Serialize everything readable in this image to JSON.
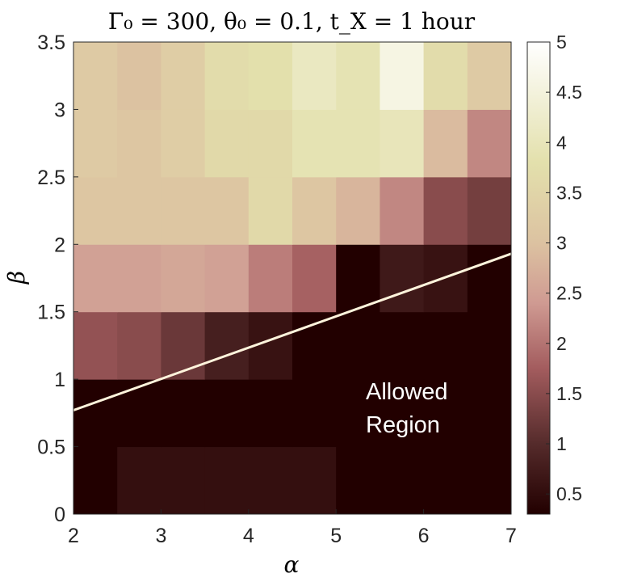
{
  "chart_data": {
    "type": "heatmap",
    "title": "Γ₀ = 300, θ₀ = 0.1, t_X = 1 hour",
    "xlabel": "α",
    "ylabel": "β",
    "xlim": [
      2,
      7
    ],
    "ylim": [
      0,
      3.5
    ],
    "xticks": [
      "2",
      "3",
      "4",
      "5",
      "6",
      "7"
    ],
    "yticks": [
      "0",
      "0.5",
      "1",
      "1.5",
      "2",
      "2.5",
      "3",
      "3.5"
    ],
    "x_centers": [
      2.25,
      2.75,
      3.25,
      3.75,
      4.25,
      4.75,
      5.25,
      5.75,
      6.25,
      6.75
    ],
    "y_centers": [
      0.25,
      0.75,
      1.25,
      1.75,
      2.25,
      2.75,
      3.25
    ],
    "z": [
      [
        0.3,
        0.55,
        0.55,
        0.55,
        0.55,
        0.55,
        0.3,
        0.3,
        0.3,
        0.3
      ],
      [
        0.3,
        0.3,
        0.3,
        0.3,
        0.3,
        0.3,
        0.3,
        0.3,
        0.3,
        0.3
      ],
      [
        1.6,
        1.5,
        1.2,
        0.8,
        0.6,
        0.3,
        0.3,
        0.3,
        0.3,
        0.3
      ],
      [
        2.5,
        2.5,
        2.6,
        2.5,
        2.1,
        1.8,
        0.3,
        0.7,
        0.6,
        0.3
      ],
      [
        3.1,
        3.1,
        3.1,
        3.1,
        3.6,
        3.1,
        2.8,
        2.2,
        1.5,
        1.3
      ],
      [
        3.2,
        3.1,
        3.3,
        3.6,
        3.6,
        3.9,
        3.9,
        4.0,
        2.9,
        2.2
      ],
      [
        3.2,
        3.0,
        3.3,
        3.7,
        3.8,
        4.1,
        3.9,
        4.6,
        3.7,
        3.2
      ]
    ],
    "colorbar": {
      "min": 0.3,
      "max": 5,
      "ticks": [
        "0.5",
        "1",
        "1.5",
        "2",
        "2.5",
        "3",
        "3.5",
        "4",
        "4.5",
        "5"
      ],
      "colors": [
        "#220000",
        "#552b2b",
        "#a35c5e",
        "#cf9a92",
        "#dcc2a1",
        "#e3e0ac",
        "#ffffff"
      ],
      "color_stops": [
        0.3,
        1.0,
        1.75,
        2.4,
        3.0,
        3.8,
        5.0
      ]
    },
    "boundary_line": {
      "x": [
        2,
        7
      ],
      "y": [
        0.77,
        1.93
      ],
      "color": "#fff4dc"
    },
    "annotations": [
      {
        "text": "Allowed",
        "line2": "Region"
      }
    ],
    "grid": false,
    "legend": "none"
  }
}
